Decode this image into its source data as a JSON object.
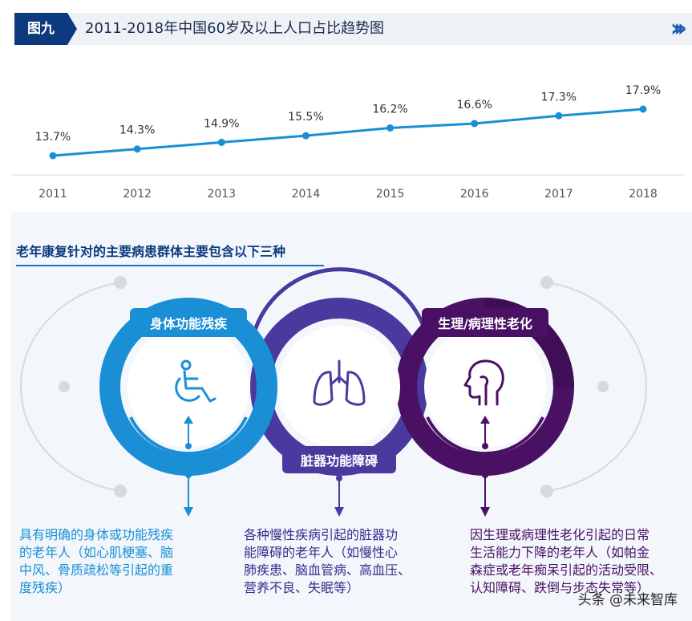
{
  "header": {
    "figure_tag": "图九",
    "title": "2011-2018年中国60岁及以上人口占比趋势图"
  },
  "chart_data": {
    "type": "line",
    "title": "2011-2018年中国60岁及以上人口占比趋势图",
    "x": [
      "2011",
      "2012",
      "2013",
      "2014",
      "2015",
      "2016",
      "2017",
      "2018"
    ],
    "series": [
      {
        "values": [
          13.7,
          14.3,
          14.9,
          15.5,
          16.2,
          16.6,
          17.3,
          17.9
        ]
      }
    ],
    "data_labels": [
      "13.7%",
      "14.3%",
      "14.9%",
      "15.5%",
      "16.2%",
      "16.6%",
      "17.3%",
      "17.9%"
    ],
    "line_color": "#1a8fd6"
  },
  "section": {
    "title": "老年康复针对的主要病患群体主要包含以下三种"
  },
  "groups": [
    {
      "label": "身体功能残疾",
      "icon": "wheelchair-icon",
      "color": "#1a8fd6",
      "description": "具有明确的身体或功能残疾\n的老年人（如心肌梗塞、脑\n中风、骨质疏松等引起的重\n度残疾）"
    },
    {
      "label": "脏器功能障碍",
      "icon": "lungs-icon",
      "color": "#4b3a9e",
      "description": "各种慢性疾病引起的脏器功\n能障碍的老年人（如慢性心\n肺疾患、脑血管病、高血压、\n营养不良、失眠等）"
    },
    {
      "label": "生理/病理性老化",
      "icon": "head-profile-icon",
      "color": "#4a1063",
      "description": "因生理或病理性老化引起的日常\n生活能力下降的老年人（如帕金\n森症或老年痴呆引起的活动受限、\n认知障碍、跌倒与步态失常等）"
    }
  ],
  "watermark": "头条 @未来智库"
}
